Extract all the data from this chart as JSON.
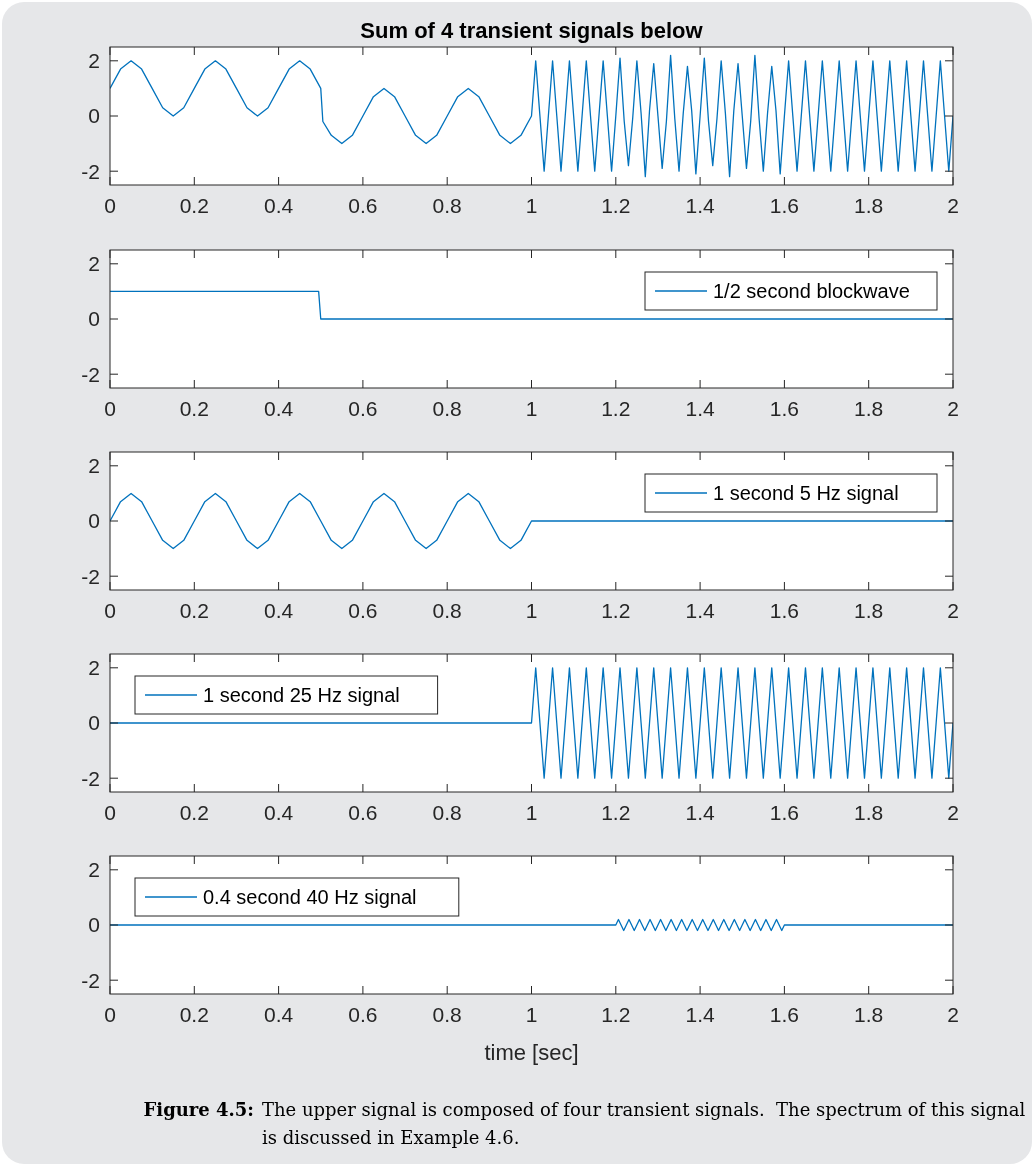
{
  "chart_data": [
    {
      "type": "line",
      "title": "Sum of 4 transient signals below",
      "xlim": [
        0,
        2
      ],
      "ylim": [
        -2.5,
        2.5
      ],
      "xticks": [
        0,
        0.2,
        0.4,
        0.6,
        0.8,
        1,
        1.2,
        1.4,
        1.6,
        1.8,
        2
      ],
      "yticks": [
        -2,
        0,
        2
      ],
      "grid": false,
      "legend": false,
      "series": [
        {
          "color": "#0072bd",
          "x": [
            0,
            0.025,
            0.05,
            0.075,
            0.1,
            0.125,
            0.15,
            0.175,
            0.2,
            0.225,
            0.25,
            0.275,
            0.3,
            0.325,
            0.35,
            0.375,
            0.4,
            0.425,
            0.45,
            0.475,
            0.5,
            0.505,
            0.525,
            0.55,
            0.575,
            0.6,
            0.625,
            0.65,
            0.675,
            0.7,
            0.725,
            0.75,
            0.775,
            0.8,
            0.825,
            0.85,
            0.875,
            0.9,
            0.925,
            0.95,
            0.975,
            1,
            1.01,
            1.02,
            1.03,
            1.04,
            1.05,
            1.06,
            1.07,
            1.08,
            1.09,
            1.1,
            1.11,
            1.12,
            1.13,
            1.14,
            1.15,
            1.16,
            1.17,
            1.18,
            1.19,
            1.2,
            1.21,
            1.22,
            1.23,
            1.24,
            1.25,
            1.26,
            1.27,
            1.28,
            1.29,
            1.3,
            1.31,
            1.32,
            1.33,
            1.34,
            1.35,
            1.36,
            1.37,
            1.38,
            1.39,
            1.4,
            1.41,
            1.42,
            1.43,
            1.44,
            1.45,
            1.46,
            1.47,
            1.48,
            1.49,
            1.5,
            1.51,
            1.52,
            1.53,
            1.54,
            1.55,
            1.56,
            1.57,
            1.58,
            1.59,
            1.6,
            1.61,
            1.62,
            1.63,
            1.64,
            1.65,
            1.66,
            1.67,
            1.68,
            1.69,
            1.7,
            1.71,
            1.72,
            1.73,
            1.74,
            1.75,
            1.76,
            1.77,
            1.78,
            1.79,
            1.8,
            1.81,
            1.82,
            1.83,
            1.84,
            1.85,
            1.86,
            1.87,
            1.88,
            1.89,
            1.9,
            1.91,
            1.92,
            1.93,
            1.94,
            1.95,
            1.96,
            1.97,
            1.98,
            1.99,
            2
          ],
          "values": [
            1,
            1.7,
            2,
            1.7,
            1,
            0.3,
            0,
            0.3,
            1,
            1.7,
            2,
            1.7,
            1,
            0.3,
            0,
            0.3,
            1,
            1.7,
            2,
            1.7,
            1,
            -0.2,
            -0.7,
            -1,
            -0.7,
            0,
            0.7,
            1,
            0.7,
            0,
            -0.7,
            -1,
            -0.7,
            0,
            0.7,
            1,
            0.7,
            0,
            -0.7,
            -1,
            -0.7,
            0,
            2,
            0,
            -2,
            0,
            2,
            0,
            -2,
            0,
            2,
            0,
            -2,
            0,
            2,
            0,
            -2,
            0,
            2,
            0,
            -2,
            0,
            2.1,
            -0.2,
            -1.8,
            -0.1,
            2,
            0.1,
            -2.2,
            0.2,
            1.9,
            0,
            -1.9,
            -0.2,
            2.2,
            -0.1,
            -2,
            0.1,
            1.8,
            0.2,
            -2.1,
            0,
            2.1,
            -0.2,
            -1.8,
            -0.1,
            2,
            0.1,
            -2.2,
            0.2,
            1.9,
            0,
            -1.9,
            -0.2,
            2.2,
            -0.1,
            -2,
            0.1,
            1.8,
            0.2,
            -2.1,
            0,
            2,
            0,
            -2,
            0,
            2,
            0,
            -2,
            0,
            2,
            0,
            -2,
            0,
            2,
            0,
            -2,
            0,
            2,
            0,
            -2,
            0,
            2,
            0,
            -2,
            0,
            2,
            0,
            -2,
            0,
            2,
            0,
            -2,
            0,
            2,
            0,
            -2,
            0,
            2,
            0,
            -2,
            0
          ]
        }
      ]
    },
    {
      "type": "line",
      "xlim": [
        0,
        2
      ],
      "ylim": [
        -2.5,
        2.5
      ],
      "xticks": [
        0,
        0.2,
        0.4,
        0.6,
        0.8,
        1,
        1.2,
        1.4,
        1.6,
        1.8,
        2
      ],
      "yticks": [
        -2,
        0,
        2
      ],
      "grid": false,
      "legend": "top right",
      "series": [
        {
          "name": "1/2 second blockwave",
          "color": "#0072bd",
          "x": [
            0,
            0.495,
            0.5,
            2
          ],
          "values": [
            1,
            1,
            0,
            0
          ]
        }
      ]
    },
    {
      "type": "line",
      "xlim": [
        0,
        2
      ],
      "ylim": [
        -2.5,
        2.5
      ],
      "xticks": [
        0,
        0.2,
        0.4,
        0.6,
        0.8,
        1,
        1.2,
        1.4,
        1.6,
        1.8,
        2
      ],
      "yticks": [
        -2,
        0,
        2
      ],
      "grid": false,
      "legend": "top right",
      "series": [
        {
          "name": "1 second 5 Hz signal",
          "color": "#0072bd",
          "x": [
            0,
            0.025,
            0.05,
            0.075,
            0.1,
            0.125,
            0.15,
            0.175,
            0.2,
            0.225,
            0.25,
            0.275,
            0.3,
            0.325,
            0.35,
            0.375,
            0.4,
            0.425,
            0.45,
            0.475,
            0.5,
            0.525,
            0.55,
            0.575,
            0.6,
            0.625,
            0.65,
            0.675,
            0.7,
            0.725,
            0.75,
            0.775,
            0.8,
            0.825,
            0.85,
            0.875,
            0.9,
            0.925,
            0.95,
            0.975,
            1,
            2
          ],
          "values": [
            0,
            0.7,
            1,
            0.7,
            0,
            -0.7,
            -1,
            -0.7,
            0,
            0.7,
            1,
            0.7,
            0,
            -0.7,
            -1,
            -0.7,
            0,
            0.7,
            1,
            0.7,
            0,
            -0.7,
            -1,
            -0.7,
            0,
            0.7,
            1,
            0.7,
            0,
            -0.7,
            -1,
            -0.7,
            0,
            0.7,
            1,
            0.7,
            0,
            -0.7,
            -1,
            -0.7,
            0,
            0
          ]
        }
      ]
    },
    {
      "type": "line",
      "xlim": [
        0,
        2
      ],
      "ylim": [
        -2.5,
        2.5
      ],
      "xticks": [
        0,
        0.2,
        0.4,
        0.6,
        0.8,
        1,
        1.2,
        1.4,
        1.6,
        1.8,
        2
      ],
      "yticks": [
        -2,
        0,
        2
      ],
      "grid": false,
      "legend": "top left",
      "series": [
        {
          "name": "1 second 25 Hz signal",
          "color": "#0072bd",
          "x": [
            0,
            1,
            1.01,
            1.02,
            1.03,
            1.04,
            1.05,
            1.06,
            1.07,
            1.08,
            1.09,
            1.1,
            1.11,
            1.12,
            1.13,
            1.14,
            1.15,
            1.16,
            1.17,
            1.18,
            1.19,
            1.2,
            1.21,
            1.22,
            1.23,
            1.24,
            1.25,
            1.26,
            1.27,
            1.28,
            1.29,
            1.3,
            1.31,
            1.32,
            1.33,
            1.34,
            1.35,
            1.36,
            1.37,
            1.38,
            1.39,
            1.4,
            1.41,
            1.42,
            1.43,
            1.44,
            1.45,
            1.46,
            1.47,
            1.48,
            1.49,
            1.5,
            1.51,
            1.52,
            1.53,
            1.54,
            1.55,
            1.56,
            1.57,
            1.58,
            1.59,
            1.6,
            1.61,
            1.62,
            1.63,
            1.64,
            1.65,
            1.66,
            1.67,
            1.68,
            1.69,
            1.7,
            1.71,
            1.72,
            1.73,
            1.74,
            1.75,
            1.76,
            1.77,
            1.78,
            1.79,
            1.8,
            1.81,
            1.82,
            1.83,
            1.84,
            1.85,
            1.86,
            1.87,
            1.88,
            1.89,
            1.9,
            1.91,
            1.92,
            1.93,
            1.94,
            1.95,
            1.96,
            1.97,
            1.98,
            1.99,
            2
          ],
          "values": [
            0,
            0,
            2,
            0,
            -2,
            0,
            2,
            0,
            -2,
            0,
            2,
            0,
            -2,
            0,
            2,
            0,
            -2,
            0,
            2,
            0,
            -2,
            0,
            2,
            0,
            -2,
            0,
            2,
            0,
            -2,
            0,
            2,
            0,
            -2,
            0,
            2,
            0,
            -2,
            0,
            2,
            0,
            -2,
            0,
            2,
            0,
            -2,
            0,
            2,
            0,
            -2,
            0,
            2,
            0,
            -2,
            0,
            2,
            0,
            -2,
            0,
            2,
            0,
            -2,
            0,
            2,
            0,
            -2,
            0,
            2,
            0,
            -2,
            0,
            2,
            0,
            -2,
            0,
            2,
            0,
            -2,
            0,
            2,
            0,
            -2,
            0,
            2,
            0,
            -2,
            0,
            2,
            0,
            -2,
            0,
            2,
            0,
            -2,
            0,
            2,
            0,
            -2,
            0,
            2,
            0,
            -2,
            0
          ]
        }
      ]
    },
    {
      "type": "line",
      "xlim": [
        0,
        2
      ],
      "ylim": [
        -2.5,
        2.5
      ],
      "xticks": [
        0,
        0.2,
        0.4,
        0.6,
        0.8,
        1,
        1.2,
        1.4,
        1.6,
        1.8,
        2
      ],
      "yticks": [
        -2,
        0,
        2
      ],
      "grid": false,
      "legend": "top left",
      "xlabel": "time [sec]",
      "annotations": [
        "Figure 4.5: The upper signal is composed of four transient signals.  The spectrum of this signal is discussed in Example 4.6."
      ],
      "series": [
        {
          "name": "0.4 second 40 Hz signal",
          "color": "#0072bd",
          "x": [
            0,
            1.2,
            1.20625,
            1.2125,
            1.21875,
            1.225,
            1.23125,
            1.2375,
            1.24375,
            1.25,
            1.25625,
            1.2625,
            1.26875,
            1.275,
            1.28125,
            1.2875,
            1.29375,
            1.3,
            1.30625,
            1.3125,
            1.31875,
            1.325,
            1.33125,
            1.3375,
            1.34375,
            1.35,
            1.35625,
            1.3625,
            1.36875,
            1.375,
            1.38125,
            1.3875,
            1.39375,
            1.4,
            1.40625,
            1.4125,
            1.41875,
            1.425,
            1.43125,
            1.4375,
            1.44375,
            1.45,
            1.45625,
            1.4625,
            1.46875,
            1.475,
            1.48125,
            1.4875,
            1.49375,
            1.5,
            1.50625,
            1.5125,
            1.51875,
            1.525,
            1.53125,
            1.5375,
            1.54375,
            1.55,
            1.55625,
            1.5625,
            1.56875,
            1.575,
            1.58125,
            1.5875,
            1.59375,
            1.6,
            2
          ],
          "values": [
            0,
            0,
            0.2,
            0,
            -0.2,
            0,
            0.2,
            0,
            -0.2,
            0,
            0.2,
            0,
            -0.2,
            0,
            0.2,
            0,
            -0.2,
            0,
            0.2,
            0,
            -0.2,
            0,
            0.2,
            0,
            -0.2,
            0,
            0.2,
            0,
            -0.2,
            0,
            0.2,
            0,
            -0.2,
            0,
            0.2,
            0,
            -0.2,
            0,
            0.2,
            0,
            -0.2,
            0,
            0.2,
            0,
            -0.2,
            0,
            0.2,
            0,
            -0.2,
            0,
            0.2,
            0,
            -0.2,
            0,
            0.2,
            0,
            -0.2,
            0,
            0.2,
            0,
            -0.2,
            0,
            0.2,
            0,
            -0.2,
            0,
            0
          ]
        }
      ]
    }
  ]
}
